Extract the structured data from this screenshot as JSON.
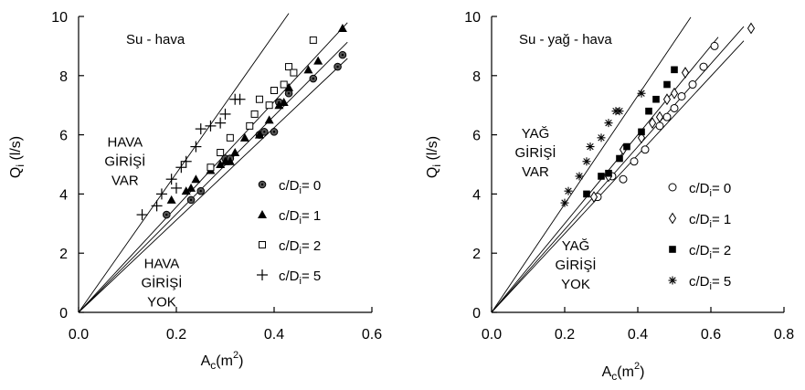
{
  "chart_data": [
    {
      "type": "scatter",
      "title": "Su - hava",
      "xlabel": "A_c(m²)",
      "ylabel": "Q_i (l/s)",
      "xlim": [
        0,
        0.6
      ],
      "ylim": [
        0,
        10
      ],
      "xticks": [
        "0.0",
        "0.2",
        "0.4",
        "0.6"
      ],
      "yticks": [
        "0",
        "2",
        "4",
        "6",
        "8",
        "10"
      ],
      "grid": false,
      "legend_position": "right-middle",
      "annotations": [
        {
          "lines": [
            "HAVA",
            "GİRİŞİ",
            "VAR"
          ],
          "x": 0.095,
          "y": 5.6
        },
        {
          "lines": [
            "HAVA",
            "GİRİŞİ",
            "YOK"
          ],
          "x": 0.17,
          "y": 1.5
        }
      ],
      "fit_lines": [
        {
          "slope": 23.5,
          "x_end": 0.43
        },
        {
          "slope": 17.8,
          "x_end": 0.55
        },
        {
          "slope": 16.6,
          "x_end": 0.55
        },
        {
          "slope": 15.6,
          "x_end": 0.55
        }
      ],
      "series": [
        {
          "label_prefix": "c/D",
          "label_sub": "i",
          "label_suffix": "= 0",
          "marker": "circle-dot",
          "x": [
            0.18,
            0.23,
            0.25,
            0.3,
            0.31,
            0.37,
            0.38,
            0.4,
            0.41,
            0.43,
            0.48,
            0.53,
            0.54
          ],
          "y": [
            3.3,
            3.8,
            4.1,
            5.2,
            5.2,
            6.0,
            6.1,
            6.1,
            7.1,
            7.4,
            7.9,
            8.3,
            8.7
          ]
        },
        {
          "label_prefix": "c/D",
          "label_sub": "i",
          "label_suffix": "= 1",
          "marker": "triangle-filled",
          "x": [
            0.19,
            0.22,
            0.23,
            0.24,
            0.27,
            0.29,
            0.3,
            0.31,
            0.32,
            0.34,
            0.37,
            0.39,
            0.41,
            0.42,
            0.43,
            0.47,
            0.49,
            0.54
          ],
          "y": [
            3.8,
            4.1,
            4.2,
            4.5,
            4.8,
            5.0,
            5.1,
            5.1,
            5.4,
            5.9,
            6.0,
            6.5,
            7.0,
            7.1,
            7.6,
            8.2,
            8.5,
            9.6
          ]
        },
        {
          "label_prefix": "c/D",
          "label_sub": "i",
          "label_suffix": "= 2",
          "marker": "square-open",
          "x": [
            0.27,
            0.29,
            0.31,
            0.35,
            0.36,
            0.37,
            0.39,
            0.4,
            0.42,
            0.43,
            0.44,
            0.48
          ],
          "y": [
            4.9,
            5.4,
            5.9,
            6.3,
            6.7,
            7.2,
            7.0,
            7.5,
            7.7,
            8.3,
            8.1,
            9.2
          ]
        },
        {
          "label_prefix": "c/D",
          "label_sub": "i",
          "label_suffix": "= 5",
          "marker": "plus",
          "x": [
            0.13,
            0.16,
            0.17,
            0.19,
            0.2,
            0.21,
            0.22,
            0.24,
            0.25,
            0.27,
            0.29,
            0.3,
            0.32,
            0.33
          ],
          "y": [
            3.3,
            3.6,
            4.0,
            4.5,
            4.2,
            4.9,
            5.1,
            5.6,
            6.2,
            6.3,
            6.4,
            6.7,
            7.2,
            7.2
          ]
        }
      ]
    },
    {
      "type": "scatter",
      "title": "Su - yağ - hava",
      "xlabel": "A_c(m²)",
      "ylabel": "Q_i (l/s)",
      "xlim": [
        0,
        0.8
      ],
      "ylim": [
        0,
        10
      ],
      "xticks": [
        "0.0",
        "0.2",
        "0.4",
        "0.6",
        "0.8"
      ],
      "yticks": [
        "0",
        "2",
        "4",
        "6",
        "8",
        "10"
      ],
      "grid": false,
      "legend_position": "right-middle",
      "annotations": [
        {
          "lines": [
            "YAĞ",
            "GİRİŞİ",
            "VAR"
          ],
          "x": 0.12,
          "y": 5.9
        },
        {
          "lines": [
            "YAĞ",
            "GİRİŞİ",
            "YOK"
          ],
          "x": 0.23,
          "y": 2.1
        }
      ],
      "fit_lines": [
        {
          "slope": 18.3,
          "x_end": 0.545
        },
        {
          "slope": 15.0,
          "x_end": 0.62
        },
        {
          "slope": 14.0,
          "x_end": 0.69
        },
        {
          "slope": 13.3,
          "x_end": 0.69
        }
      ],
      "series": [
        {
          "label_prefix": "c/D",
          "label_sub": "i",
          "label_suffix": "= 0",
          "marker": "circle-open",
          "x": [
            0.29,
            0.33,
            0.36,
            0.39,
            0.42,
            0.46,
            0.48,
            0.5,
            0.52,
            0.55,
            0.58,
            0.61
          ],
          "y": [
            3.9,
            4.6,
            4.5,
            5.1,
            5.5,
            6.3,
            6.6,
            6.9,
            7.3,
            7.7,
            8.3,
            9.0
          ]
        },
        {
          "label_prefix": "c/D",
          "label_sub": "i",
          "label_suffix": "= 1",
          "marker": "diamond-open",
          "x": [
            0.28,
            0.32,
            0.36,
            0.41,
            0.44,
            0.46,
            0.48,
            0.5,
            0.53,
            0.71
          ],
          "y": [
            3.9,
            4.6,
            5.5,
            5.9,
            6.4,
            6.6,
            7.2,
            7.4,
            8.1,
            9.6
          ]
        },
        {
          "label_prefix": "c/D",
          "label_sub": "i",
          "label_suffix": "= 2",
          "marker": "square-filled",
          "x": [
            0.26,
            0.3,
            0.32,
            0.35,
            0.37,
            0.41,
            0.43,
            0.45,
            0.48,
            0.5
          ],
          "y": [
            4.0,
            4.6,
            4.7,
            5.2,
            5.6,
            6.1,
            6.8,
            7.2,
            7.7,
            8.2
          ]
        },
        {
          "label_prefix": "c/D",
          "label_sub": "i",
          "label_suffix": "= 5",
          "marker": "asterisk",
          "x": [
            0.2,
            0.21,
            0.24,
            0.26,
            0.27,
            0.3,
            0.32,
            0.34,
            0.35,
            0.41
          ],
          "y": [
            3.7,
            4.1,
            4.6,
            5.1,
            5.6,
            5.9,
            6.4,
            6.8,
            6.8,
            7.4
          ]
        }
      ]
    }
  ]
}
